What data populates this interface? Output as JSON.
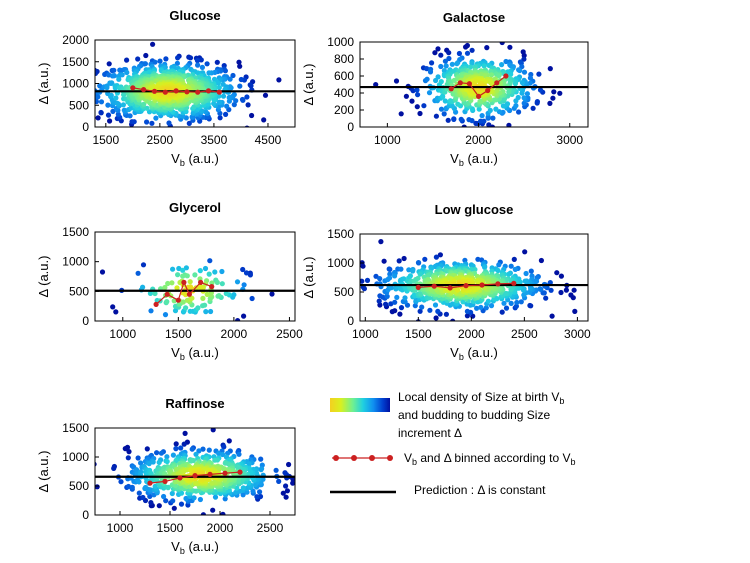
{
  "chart_data": [
    {
      "type": "scatter",
      "title": "Glucose",
      "xlabel": "V_b (a.u.)",
      "ylabel": "Δ (a.u.)",
      "xlim": [
        1300,
        5000
      ],
      "ylim": [
        0,
        2000
      ],
      "xticks": [
        1500,
        2500,
        3500,
        4500
      ],
      "yticks": [
        0,
        500,
        1000,
        1500,
        2000
      ],
      "xtick_labels": [
        "1500",
        "2500",
        "3500",
        "4500"
      ],
      "ytick_labels": [
        "0",
        "500",
        "1000",
        "1500",
        "2000"
      ],
      "cloud": {
        "center_x": 2650,
        "center_y": 820,
        "spread_x": 650,
        "spread_y": 330,
        "n_points": 900
      },
      "prediction_constant": 820,
      "binned": {
        "x": [
          2000,
          2200,
          2400,
          2600,
          2800,
          3000,
          3200,
          3400,
          3600
        ],
        "y": [
          900,
          860,
          820,
          800,
          830,
          810,
          800,
          830,
          800
        ]
      }
    },
    {
      "type": "scatter",
      "title": "Galactose",
      "xlabel": "V_b (a.u.)",
      "ylabel": "Δ (a.u.)",
      "xlim": [
        700,
        3200
      ],
      "ylim": [
        0,
        1000
      ],
      "xticks": [
        1000,
        2000,
        3000
      ],
      "yticks": [
        0,
        200,
        400,
        600,
        800,
        1000
      ],
      "xtick_labels": [
        "1000",
        "2000",
        "3000"
      ],
      "ytick_labels": [
        "0",
        "200",
        "400",
        "600",
        "800",
        "1000"
      ],
      "cloud": {
        "center_x": 2000,
        "center_y": 470,
        "spread_x": 300,
        "spread_y": 180,
        "n_points": 500
      },
      "prediction_constant": 470,
      "binned": {
        "x": [
          1700,
          1800,
          1900,
          2000,
          2100,
          2200,
          2300
        ],
        "y": [
          450,
          520,
          510,
          360,
          430,
          520,
          600
        ]
      }
    },
    {
      "type": "scatter",
      "title": "Glycerol",
      "xlabel": "V_b (a.u.)",
      "ylabel": "Δ (a.u.)",
      "xlim": [
        750,
        2550
      ],
      "ylim": [
        0,
        1500
      ],
      "xticks": [
        1000,
        1500,
        2000,
        2500
      ],
      "yticks": [
        0,
        500,
        1000,
        1500
      ],
      "xtick_labels": [
        "1000",
        "1500",
        "2000",
        "2500"
      ],
      "ytick_labels": [
        "0",
        "500",
        "1000",
        "1500"
      ],
      "cloud": {
        "center_x": 1600,
        "center_y": 520,
        "spread_x": 260,
        "spread_y": 240,
        "n_points": 120
      },
      "prediction_constant": 510,
      "binned": {
        "x": [
          1300,
          1400,
          1500,
          1550,
          1600,
          1700,
          1800
        ],
        "y": [
          280,
          450,
          350,
          650,
          450,
          650,
          580
        ]
      }
    },
    {
      "type": "scatter",
      "title": "Low glucose",
      "xlabel": "V_b (a.u.)",
      "ylabel": "Δ (a.u.)",
      "xlim": [
        950,
        3100
      ],
      "ylim": [
        0,
        1500
      ],
      "xticks": [
        1000,
        1500,
        2000,
        2500,
        3000
      ],
      "yticks": [
        0,
        500,
        1000,
        1500
      ],
      "xtick_labels": [
        "1000",
        "1500",
        "2000",
        "2500",
        "3000"
      ],
      "ytick_labels": [
        "0",
        "500",
        "1000",
        "1500"
      ],
      "cloud": {
        "center_x": 1900,
        "center_y": 620,
        "spread_x": 380,
        "spread_y": 210,
        "n_points": 700
      },
      "prediction_constant": 620,
      "binned": {
        "x": [
          1500,
          1650,
          1800,
          1950,
          2100,
          2250,
          2400
        ],
        "y": [
          580,
          600,
          570,
          610,
          620,
          640,
          650
        ]
      }
    },
    {
      "type": "scatter",
      "title": "Raffinose",
      "xlabel": "V_b (a.u.)",
      "ylabel": "Δ (a.u.)",
      "xlim": [
        750,
        2750
      ],
      "ylim": [
        0,
        1500
      ],
      "xticks": [
        1000,
        1500,
        2000,
        2500
      ],
      "yticks": [
        0,
        500,
        1000,
        1500
      ],
      "xtick_labels": [
        "1000",
        "1500",
        "2000",
        "2500"
      ],
      "ytick_labels": [
        "0",
        "500",
        "1000",
        "1500"
      ],
      "cloud": {
        "center_x": 1800,
        "center_y": 680,
        "spread_x": 360,
        "spread_y": 220,
        "n_points": 650
      },
      "prediction_constant": 660,
      "binned": {
        "x": [
          1300,
          1450,
          1600,
          1750,
          1900,
          2050,
          2200
        ],
        "y": [
          550,
          580,
          640,
          680,
          700,
          720,
          740
        ]
      }
    }
  ],
  "legend": {
    "density_line1": "Local density of Size at birth V",
    "density_line1_sub": "b",
    "density_line2": "and budding to budding Size",
    "density_line3": "increment Δ",
    "binned_label": "V",
    "binned_label_sub": "b",
    "binned_label_rest": " and Δ binned according to V",
    "binned_label_sub2": "b",
    "prediction_label": "Prediction : Δ is constant"
  },
  "colors": {
    "density_gradient": [
      "#f4d020",
      "#d8f020",
      "#70f090",
      "#20d0e0",
      "#1090f0",
      "#0040d0",
      "#0010a0"
    ],
    "binned": "#cc2020",
    "prediction": "#000000"
  }
}
